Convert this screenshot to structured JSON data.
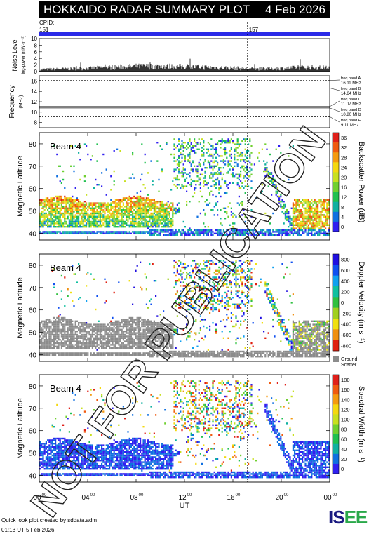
{
  "header": {
    "title": "HOKKAIDO RADAR SUMMARY PLOT",
    "date": "4 Feb 2026"
  },
  "cpid": {
    "label": "CPID:",
    "values": [
      "151",
      "157"
    ],
    "switch_ut": 17.2
  },
  "panels": {
    "noise": {
      "label": "Noise Level",
      "sublabel": "log-power (mW·m⁻²)",
      "ticks": [
        "10",
        "8",
        "6",
        "4",
        "2",
        "0"
      ]
    },
    "frequency": {
      "label": "Frequency",
      "unit": "(MHz)",
      "ticks": [
        "16",
        "14",
        "12",
        "10",
        "8"
      ],
      "bands": [
        {
          "name": "freq band A",
          "value": "16.11 MHz"
        },
        {
          "name": "freq band B",
          "value": "14.64 MHz"
        },
        {
          "name": "freq band C",
          "value": "11.07 MHz"
        },
        {
          "name": "freq band D",
          "value": "10.80 MHz"
        },
        {
          "name": "freq band E",
          "value": "9.11 MHz"
        }
      ]
    }
  },
  "beam_label": "Beam  4",
  "ylabel": "Magnetic Latitude",
  "lat_ticks": [
    "80",
    "70",
    "60",
    "50",
    "40"
  ],
  "x_ticks": [
    "00",
    "04",
    "08",
    "12",
    "16",
    "20",
    "00"
  ],
  "x_tick_sup": "00",
  "xlabel": "UT",
  "colorbars": {
    "power": {
      "label": "Backscatter Power (dB)",
      "ticks": [
        "36",
        "32",
        "28",
        "24",
        "20",
        "16",
        "12",
        "8",
        "4",
        "0"
      ],
      "colors": [
        "#e0201a",
        "#f05a10",
        "#f49a10",
        "#f4d810",
        "#c8e020",
        "#70d030",
        "#20c050",
        "#10b0a0",
        "#1070e0",
        "#3020f0"
      ]
    },
    "velocity": {
      "label": "Doppler Velocity (m s⁻¹)",
      "ticks": [
        "800",
        "600",
        "400",
        "200",
        "0",
        "-200",
        "-400",
        "-600",
        "-800"
      ],
      "colors": [
        "#2010e0",
        "#1050f0",
        "#10a0f0",
        "#10c0a0",
        "#30c040",
        "#a0d020",
        "#f0e010",
        "#f09010",
        "#e02010"
      ],
      "ground_label": "Ground",
      "ground_label2": "Scatter",
      "ground_color": "#8c8c8c"
    },
    "width": {
      "label": "Spectral Width (m s⁻¹)",
      "ticks": [
        "180",
        "160",
        "140",
        "120",
        "100",
        "80",
        "60",
        "40",
        "20",
        "0"
      ],
      "colors": [
        "#e0201a",
        "#f05a10",
        "#f49a10",
        "#f4d810",
        "#c8e020",
        "#70d030",
        "#20c050",
        "#10b0a0",
        "#1070e0",
        "#3020f0"
      ]
    }
  },
  "watermark": "NOT FOR PUBLICATION",
  "footer": {
    "line1": "Quick look plot created by sddata.adm",
    "line2": "01:13 UT  5 Feb 2026"
  },
  "logo": {
    "part1": "IS",
    "part2": "EE"
  },
  "chart_data": [
    {
      "type": "line",
      "title": "Noise Level",
      "ylim": [
        0,
        10
      ],
      "xlim_ut": [
        0,
        24
      ],
      "x": [
        0,
        2,
        4,
        6,
        8,
        10,
        12,
        14,
        16,
        18,
        20,
        22,
        24
      ],
      "values": [
        0.8,
        1.0,
        1.2,
        1.6,
        1.9,
        2.0,
        1.8,
        1.6,
        1.3,
        1.0,
        1.2,
        1.6,
        1.4
      ]
    },
    {
      "type": "line",
      "title": "Frequency",
      "ylabel": "Frequency (MHz)",
      "ylim": [
        7,
        17
      ],
      "series": [
        {
          "name": "freq band A",
          "values": [
            16.11
          ]
        },
        {
          "name": "freq band B",
          "values": [
            14.64
          ]
        },
        {
          "name": "freq band C",
          "values": [
            11.07
          ]
        },
        {
          "name": "freq band D",
          "values": [
            10.8
          ]
        },
        {
          "name": "freq band E",
          "values": [
            9.11
          ]
        }
      ]
    },
    {
      "type": "heatmap",
      "title": "Beam  4",
      "xlabel": "UT",
      "ylabel": "Magnetic Latitude",
      "xlim_ut": [
        0,
        24
      ],
      "ylim": [
        37,
        85
      ],
      "colorbar": "Backscatter Power (dB)",
      "zlim": [
        0,
        36
      ]
    },
    {
      "type": "heatmap",
      "title": "Beam  4",
      "xlabel": "UT",
      "ylabel": "Magnetic Latitude",
      "xlim_ut": [
        0,
        24
      ],
      "ylim": [
        37,
        85
      ],
      "colorbar": "Doppler Velocity (m s⁻¹)",
      "zlim": [
        -800,
        800
      ]
    },
    {
      "type": "heatmap",
      "title": "Beam  4",
      "xlabel": "UT",
      "ylabel": "Magnetic Latitude",
      "xlim_ut": [
        0,
        24
      ],
      "ylim": [
        37,
        85
      ],
      "colorbar": "Spectral Width (m s⁻¹)",
      "zlim": [
        0,
        180
      ]
    }
  ]
}
